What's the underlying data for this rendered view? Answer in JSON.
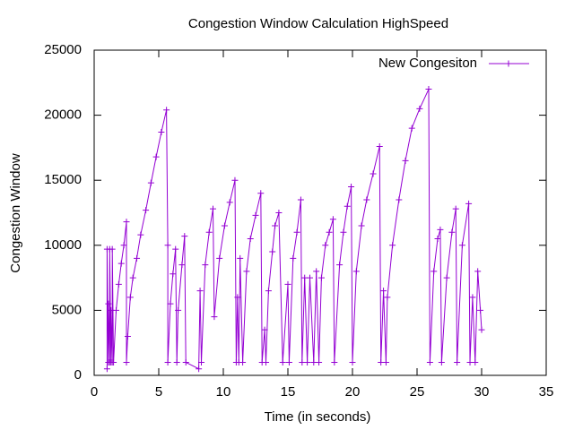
{
  "chart_data": {
    "type": "line",
    "title": "Congestion Window Calculation HighSpeed",
    "x_label": "Time (in seconds)",
    "y_label": "Congestion Window",
    "xlim": [
      0,
      35
    ],
    "xticks": [
      0,
      5,
      10,
      15,
      20,
      25,
      30,
      35
    ],
    "ylim": [
      0,
      25000
    ],
    "yticks": [
      0,
      5000,
      10000,
      15000,
      20000,
      25000
    ],
    "legend": "top-right",
    "series": [
      {
        "name": "New Congesiton",
        "color": "#9400d3",
        "x": [
          1.0,
          1.0,
          1.1,
          1.1,
          1.2,
          1.2,
          1.3,
          1.3,
          1.4,
          1.4,
          1.5,
          1.7,
          1.9,
          2.1,
          2.3,
          2.5,
          2.5,
          2.6,
          2.8,
          3.0,
          3.3,
          3.6,
          4.0,
          4.4,
          4.8,
          5.2,
          5.6,
          5.7,
          5.7,
          5.9,
          6.1,
          6.3,
          6.4,
          6.5,
          6.8,
          7.0,
          7.1,
          8.1,
          8.2,
          8.3,
          8.6,
          8.9,
          9.2,
          9.3,
          9.7,
          10.1,
          10.5,
          10.9,
          11.0,
          11.1,
          11.2,
          11.3,
          11.5,
          11.8,
          12.1,
          12.5,
          12.9,
          13.0,
          13.2,
          13.3,
          13.5,
          13.8,
          14.0,
          14.3,
          14.6,
          15.0,
          15.1,
          15.4,
          15.7,
          16.0,
          16.1,
          16.3,
          16.5,
          16.7,
          17.0,
          17.2,
          17.4,
          17.6,
          17.9,
          18.2,
          18.5,
          18.6,
          19.0,
          19.3,
          19.6,
          19.9,
          20.0,
          20.3,
          20.7,
          21.1,
          21.6,
          22.1,
          22.2,
          22.4,
          22.6,
          22.7,
          23.1,
          23.6,
          24.1,
          24.6,
          25.2,
          25.9,
          26.0,
          26.3,
          26.6,
          26.8,
          26.9,
          27.3,
          27.7,
          28.0,
          28.1,
          28.5,
          29.0,
          29.1,
          29.3,
          29.5,
          29.7,
          29.9,
          30.0
        ],
        "values": [
          500,
          9700,
          1000,
          5500,
          1000,
          9700,
          1000,
          5000,
          1000,
          9700,
          1000,
          5000,
          7000,
          8600,
          10000,
          11800,
          1000,
          3000,
          6000,
          7500,
          9000,
          10800,
          12700,
          14800,
          16800,
          18700,
          20400,
          10000,
          1000,
          5500,
          7800,
          9700,
          1000,
          5000,
          8500,
          10700,
          1000,
          500,
          6500,
          1000,
          8500,
          11000,
          12800,
          4500,
          9000,
          11500,
          13300,
          15000,
          1000,
          6000,
          1000,
          9000,
          1000,
          8000,
          10500,
          12300,
          14000,
          1000,
          3500,
          1000,
          6500,
          9500,
          11500,
          12500,
          1000,
          7000,
          1000,
          9000,
          11000,
          13500,
          1000,
          7500,
          1000,
          7500,
          1000,
          8000,
          1000,
          7500,
          10000,
          11000,
          12000,
          1000,
          8500,
          11000,
          13000,
          14500,
          1000,
          8000,
          11500,
          13500,
          15500,
          17600,
          1000,
          6500,
          1000,
          6000,
          10000,
          13500,
          16500,
          19000,
          20500,
          22000,
          1000,
          8000,
          10500,
          11200,
          1000,
          7500,
          11000,
          12800,
          1000,
          10000,
          13200,
          1000,
          6000,
          1000,
          8000,
          5000,
          3500
        ]
      }
    ]
  }
}
